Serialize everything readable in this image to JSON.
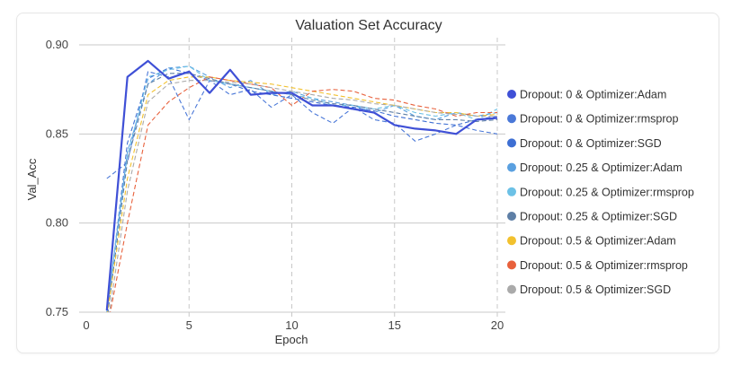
{
  "chart_data": {
    "type": "line",
    "title": "Valuation Set Accuracy",
    "xlabel": "Epoch",
    "ylabel": "Val_Acc",
    "xlim": [
      0,
      20
    ],
    "ylim": [
      0.75,
      0.9
    ],
    "x_ticks": [
      "0",
      "5",
      "10",
      "15",
      "20"
    ],
    "y_ticks": [
      "0.75",
      "0.80",
      "0.85",
      "0.90"
    ],
    "grid": true,
    "legend_position": "right",
    "x": [
      1,
      2,
      3,
      4,
      5,
      6,
      7,
      8,
      9,
      10,
      11,
      12,
      13,
      14,
      15,
      16,
      17,
      18,
      19,
      20
    ],
    "series": [
      {
        "name": "Dropout: 0 & Optimizer:Adam",
        "color": "#3f50d6",
        "dash": false,
        "values": [
          0.751,
          0.882,
          0.891,
          0.881,
          0.885,
          0.873,
          0.886,
          0.872,
          0.873,
          0.873,
          0.866,
          0.866,
          0.864,
          0.862,
          0.855,
          0.853,
          0.852,
          0.85,
          0.858,
          0.859
        ]
      },
      {
        "name": "Dropout: 0 & Optimizer:rmsprop",
        "color": "#4a78d8",
        "dash": true,
        "values": [
          0.825,
          0.834,
          0.885,
          0.882,
          0.858,
          0.88,
          0.872,
          0.875,
          0.865,
          0.872,
          0.862,
          0.856,
          0.865,
          0.858,
          0.856,
          0.846,
          0.85,
          0.855,
          0.852,
          0.85
        ]
      },
      {
        "name": "Dropout: 0 & Optimizer:SGD",
        "color": "#3e6fd3",
        "dash": true,
        "values": [
          0.748,
          0.845,
          0.881,
          0.887,
          0.884,
          0.88,
          0.878,
          0.874,
          0.872,
          0.87,
          0.868,
          0.866,
          0.865,
          0.863,
          0.86,
          0.858,
          0.856,
          0.855,
          0.858,
          0.86
        ]
      },
      {
        "name": "Dropout: 0.25 & Optimizer:Adam",
        "color": "#5aa0e0",
        "dash": true,
        "values": [
          0.75,
          0.84,
          0.878,
          0.887,
          0.888,
          0.882,
          0.876,
          0.88,
          0.872,
          0.874,
          0.87,
          0.868,
          0.866,
          0.862,
          0.866,
          0.86,
          0.858,
          0.862,
          0.86,
          0.862
        ]
      },
      {
        "name": "Dropout: 0.25 & Optimizer:rmsprop",
        "color": "#6cc1e6",
        "dash": true,
        "values": [
          0.752,
          0.838,
          0.882,
          0.886,
          0.888,
          0.88,
          0.878,
          0.876,
          0.874,
          0.872,
          0.87,
          0.866,
          0.866,
          0.864,
          0.866,
          0.862,
          0.86,
          0.862,
          0.858,
          0.864
        ]
      },
      {
        "name": "Dropout: 0.25 & Optimizer:SGD",
        "color": "#5e7fa6",
        "dash": true,
        "values": [
          0.745,
          0.835,
          0.878,
          0.884,
          0.884,
          0.881,
          0.878,
          0.876,
          0.874,
          0.872,
          0.869,
          0.867,
          0.866,
          0.864,
          0.862,
          0.86,
          0.858,
          0.858,
          0.857,
          0.858
        ]
      },
      {
        "name": "Dropout: 0.5 & Optimizer:Adam",
        "color": "#f2c12e",
        "dash": true,
        "values": [
          0.748,
          0.825,
          0.872,
          0.88,
          0.882,
          0.882,
          0.88,
          0.879,
          0.878,
          0.876,
          0.874,
          0.872,
          0.87,
          0.868,
          0.866,
          0.864,
          0.862,
          0.862,
          0.86,
          0.861
        ]
      },
      {
        "name": "Dropout: 0.5 & Optimizer:rmsprop",
        "color": "#e8613c",
        "dash": true,
        "values": [
          0.74,
          0.8,
          0.855,
          0.868,
          0.876,
          0.882,
          0.88,
          0.878,
          0.876,
          0.866,
          0.874,
          0.875,
          0.874,
          0.87,
          0.869,
          0.866,
          0.864,
          0.86,
          0.862,
          0.862
        ]
      },
      {
        "name": "Dropout: 0.5 & Optimizer:SGD",
        "color": "#aaaaaa",
        "dash": true,
        "values": [
          0.74,
          0.818,
          0.868,
          0.878,
          0.88,
          0.88,
          0.879,
          0.878,
          0.876,
          0.874,
          0.872,
          0.87,
          0.869,
          0.867,
          0.866,
          0.864,
          0.862,
          0.861,
          0.86,
          0.86
        ]
      }
    ]
  }
}
